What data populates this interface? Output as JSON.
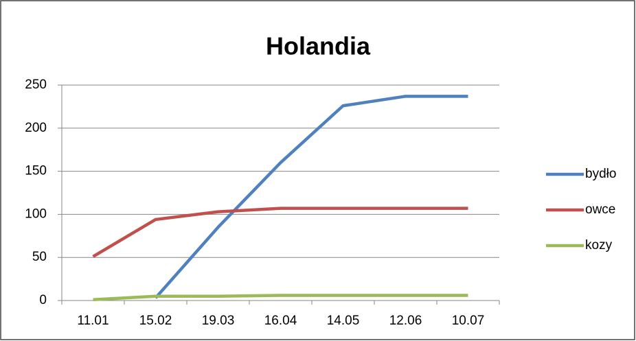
{
  "chart_data": {
    "type": "line",
    "title": "Holandia",
    "categories": [
      "11.01",
      "15.02",
      "19.03",
      "16.04",
      "14.05",
      "12.06",
      "10.07"
    ],
    "series": [
      {
        "name": "bydło",
        "color": "#4f81bd",
        "values": [
          null,
          3,
          85,
          160,
          226,
          237,
          237
        ]
      },
      {
        "name": "owce",
        "color": "#c0504d",
        "values": [
          51,
          94,
          103,
          107,
          107,
          107,
          107
        ]
      },
      {
        "name": "kozy",
        "color": "#9bbb59",
        "values": [
          1,
          5,
          5,
          6,
          6,
          6,
          6
        ]
      }
    ],
    "ylim": [
      0,
      250
    ],
    "yticks": [
      0,
      50,
      100,
      150,
      200,
      250
    ],
    "grid": true,
    "legend": "right"
  }
}
